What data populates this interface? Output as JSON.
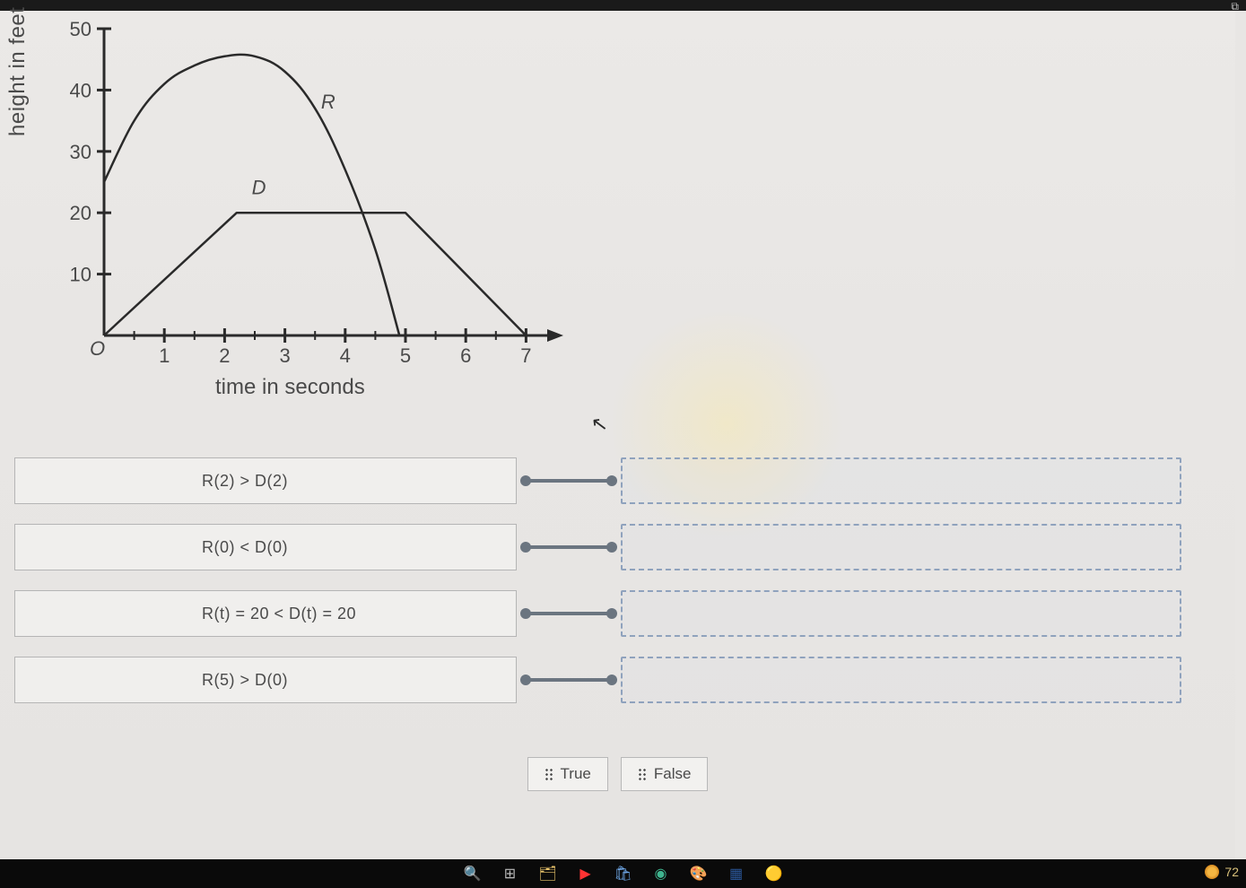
{
  "chart": {
    "type": "line",
    "xlabel": "time in seconds",
    "ylabel": "height in feet",
    "origin_label": "O",
    "xlim": [
      0,
      7.5
    ],
    "ylim": [
      0,
      50
    ],
    "xtick_step": 1,
    "ytick_step": 10,
    "xtick_labels": [
      "1",
      "2",
      "3",
      "4",
      "5",
      "6",
      "7"
    ],
    "ytick_labels": [
      "10",
      "20",
      "30",
      "40",
      "50"
    ],
    "label_fontsize": 24,
    "tick_fontsize": 22,
    "curve_fontsize": 22,
    "axis_color": "#2a2a2a",
    "tick_color": "#2a2a2a",
    "text_color": "#4a4a4a",
    "line_color": "#2a2a2a",
    "line_width": 2.5,
    "series": {
      "R": {
        "label": "R",
        "label_pos": {
          "x": 3.6,
          "y": 37
        },
        "points": [
          {
            "x": 0.0,
            "y": 25
          },
          {
            "x": 0.5,
            "y": 35
          },
          {
            "x": 1.0,
            "y": 41
          },
          {
            "x": 1.5,
            "y": 44
          },
          {
            "x": 2.0,
            "y": 45.5
          },
          {
            "x": 2.5,
            "y": 45.5
          },
          {
            "x": 3.0,
            "y": 43
          },
          {
            "x": 3.5,
            "y": 37
          },
          {
            "x": 4.0,
            "y": 27
          },
          {
            "x": 4.5,
            "y": 14
          },
          {
            "x": 4.9,
            "y": 0
          }
        ]
      },
      "D": {
        "label": "D",
        "label_pos": {
          "x": 2.45,
          "y": 23
        },
        "points": [
          {
            "x": 0.0,
            "y": 0
          },
          {
            "x": 2.2,
            "y": 20
          },
          {
            "x": 5.0,
            "y": 20
          },
          {
            "x": 7.0,
            "y": 0
          }
        ]
      }
    },
    "background_color": "#e8e6e4"
  },
  "statements": [
    {
      "text": "R(2) > D(2)"
    },
    {
      "text": "R(0) < D(0)"
    },
    {
      "text": "R(t) = 20 < D(t) = 20"
    },
    {
      "text": "R(5) > D(0)"
    }
  ],
  "tiles": [
    {
      "label": "True"
    },
    {
      "label": "False"
    }
  ],
  "taskbar": {
    "temp": "72"
  },
  "colors": {
    "panel_bg": "#e8e6e4",
    "prompt_border": "#b5b5b5",
    "prompt_bg": "#f0efed",
    "connector": "#6b7580",
    "dropzone_border": "#8fa2bd",
    "text": "#4a4a4a"
  }
}
